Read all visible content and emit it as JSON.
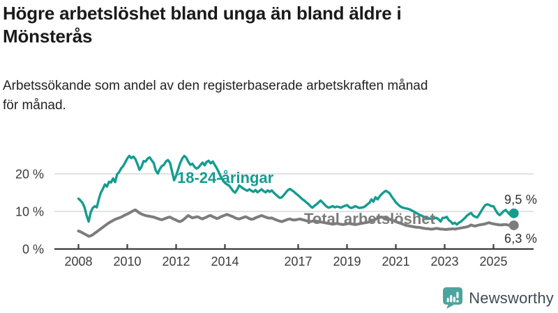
{
  "header": {
    "title_line1": "Högre arbetslöshet bland unga än bland äldre i",
    "title_line2": "Mönsterås",
    "subtitle_line1": "Arbetssökande som andel av den registerbaserade arbetskraften månad",
    "subtitle_line2": "för månad."
  },
  "chart_data": {
    "type": "line",
    "unit": "%",
    "x_start": "2008-01",
    "x_end": "2025-11",
    "x_cadence": "monthly",
    "x_ticks": [
      2008,
      2010,
      2012,
      2014,
      2017,
      2019,
      2021,
      2023,
      2025
    ],
    "y_ticks": [
      {
        "value": 0,
        "label": "0 %"
      },
      {
        "value": 10,
        "label": "10 %"
      },
      {
        "value": 20,
        "label": "20 %"
      }
    ],
    "ylim": [
      0,
      26
    ],
    "grid": "horizontal-only",
    "legend_position": "inline-labels",
    "series": [
      {
        "name": "18-24-åringar",
        "color": "#149c90",
        "end_label": "9,5 %",
        "end_value": 9.5,
        "values": [
          13.4,
          12.9,
          12.3,
          11.0,
          8.9,
          7.3,
          9.7,
          10.9,
          11.4,
          11.1,
          13.3,
          15.0,
          16.0,
          17.2,
          16.6,
          17.9,
          17.7,
          18.8,
          17.8,
          19.9,
          20.5,
          21.5,
          22.1,
          23.1,
          24.1,
          24.8,
          24.2,
          24.6,
          23.9,
          22.6,
          21.1,
          21.9,
          23.4,
          23.3,
          24.1,
          24.4,
          23.6,
          22.9,
          20.9,
          20.1,
          21.3,
          22.1,
          22.4,
          23.3,
          23.7,
          22.9,
          20.6,
          18.3,
          19.5,
          21.2,
          22.9,
          24.1,
          24.8,
          24.3,
          23.2,
          22.4,
          22.7,
          21.9,
          21.4,
          21.7,
          22.4,
          23.0,
          22.3,
          23.2,
          23.5,
          22.8,
          23.3,
          22.4,
          21.5,
          20.4,
          19.2,
          18.3,
          17.6,
          17.2,
          16.9,
          16.2,
          15.4,
          15.0,
          15.8,
          16.9,
          16.5,
          16.1,
          15.8,
          15.5,
          15.9,
          15.5,
          15.2,
          15.7,
          15.1,
          15.5,
          15.9,
          15.4,
          15.1,
          15.6,
          15.2,
          15.6,
          15.0,
          14.5,
          14.0,
          13.6,
          13.8,
          14.4,
          15.1,
          15.7,
          16.0,
          15.6,
          15.2,
          14.7,
          14.3,
          13.8,
          13.3,
          12.9,
          12.4,
          12.0,
          11.4,
          11.0,
          11.5,
          11.9,
          12.4,
          12.9,
          12.4,
          11.8,
          11.3,
          11.0,
          11.2,
          11.4,
          11.1,
          11.3,
          11.2,
          11.0,
          11.3,
          11.5,
          11.7,
          11.2,
          10.9,
          11.1,
          11.4,
          11.2,
          10.9,
          11.0,
          11.1,
          11.4,
          11.9,
          12.3,
          13.2,
          12.6,
          13.8,
          13.2,
          14.0,
          14.6,
          15.1,
          15.5,
          15.2,
          14.8,
          13.9,
          13.2,
          12.4,
          11.9,
          11.4,
          11.1,
          10.9,
          10.8,
          10.7,
          10.5,
          10.2,
          9.9,
          9.6,
          9.3,
          9.0,
          8.8,
          8.5,
          8.3,
          8.2,
          8.1,
          8.0,
          8.2,
          8.3,
          7.9,
          7.3,
          8.3,
          8.3,
          8.6,
          7.7,
          7.3,
          6.7,
          7.0,
          6.5,
          7.0,
          7.3,
          7.8,
          8.3,
          8.9,
          9.3,
          9.6,
          8.9,
          8.6,
          8.4,
          9.2,
          10.1,
          11.0,
          11.7,
          11.9,
          11.7,
          11.4,
          11.4,
          10.4,
          9.5,
          9.0,
          9.5,
          10.1,
          10.4,
          9.8,
          9.2,
          9.0,
          9.5
        ]
      },
      {
        "name": "Total arbetslöshet",
        "color": "#7c7c7c",
        "end_label": "6,3 %",
        "end_value": 6.3,
        "values": [
          4.8,
          4.6,
          4.3,
          4.0,
          3.7,
          3.4,
          3.5,
          3.8,
          4.2,
          4.6,
          5.0,
          5.4,
          5.8,
          6.2,
          6.6,
          7.0,
          7.3,
          7.6,
          7.9,
          8.1,
          8.3,
          8.5,
          8.8,
          9.1,
          9.3,
          9.6,
          9.9,
          10.2,
          10.4,
          10.0,
          9.6,
          9.3,
          9.1,
          8.9,
          8.8,
          8.7,
          8.6,
          8.5,
          8.3,
          8.1,
          7.9,
          7.8,
          8.0,
          8.2,
          8.4,
          8.5,
          8.2,
          7.9,
          7.7,
          7.4,
          7.3,
          7.6,
          8.0,
          8.5,
          8.9,
          8.6,
          8.3,
          8.4,
          8.6,
          8.5,
          8.2,
          8.0,
          8.3,
          8.5,
          8.8,
          8.9,
          8.6,
          8.4,
          8.1,
          8.3,
          8.6,
          8.8,
          9.0,
          9.2,
          9.0,
          8.8,
          8.6,
          8.3,
          8.1,
          8.0,
          8.2,
          8.4,
          8.6,
          8.4,
          8.1,
          7.9,
          8.0,
          8.3,
          8.5,
          8.7,
          8.9,
          8.7,
          8.5,
          8.3,
          8.2,
          8.3,
          8.0,
          7.8,
          7.6,
          7.4,
          7.3,
          7.5,
          7.7,
          7.9,
          8.0,
          7.8,
          7.7,
          7.8,
          7.9,
          8.0,
          7.8,
          7.7,
          7.5,
          7.4,
          7.3,
          7.4,
          7.5,
          7.4,
          7.3,
          7.2,
          7.1,
          7.0,
          6.9,
          6.8,
          6.7,
          6.6,
          6.7,
          6.8,
          6.7,
          6.6,
          6.5,
          6.6,
          6.7,
          6.8,
          6.7,
          6.6,
          6.5,
          6.6,
          6.7,
          6.8,
          6.9,
          7.0,
          7.1,
          7.2,
          7.4,
          7.6,
          7.9,
          8.2,
          8.4,
          8.5,
          8.4,
          8.3,
          8.1,
          7.9,
          7.7,
          7.5,
          7.3,
          7.1,
          6.9,
          6.7,
          6.5,
          6.3,
          6.2,
          6.1,
          6.0,
          5.9,
          5.8,
          5.8,
          5.7,
          5.6,
          5.5,
          5.4,
          5.4,
          5.3,
          5.3,
          5.4,
          5.5,
          5.4,
          5.3,
          5.3,
          5.2,
          5.2,
          5.3,
          5.3,
          5.4,
          5.3,
          5.4,
          5.5,
          5.6,
          5.7,
          5.8,
          5.9,
          6.1,
          6.4,
          6.2,
          6.1,
          6.3,
          6.4,
          6.5,
          6.6,
          6.7,
          6.9,
          7.0,
          6.8,
          6.7,
          6.6,
          6.5,
          6.4,
          6.4,
          6.5,
          6.5,
          6.4,
          6.3,
          6.3,
          6.3
        ]
      }
    ],
    "title": "Högre arbetslöshet bland unga än bland äldre i Mönsterås",
    "xlabel": "",
    "ylabel": ""
  },
  "style": {
    "grid_color": "#d8d8d8",
    "axis_color": "#3c3c3c",
    "tick_label_color": "#3c3c3c",
    "value_label_color": "#303030"
  },
  "branding": {
    "wordmark": "Newsworthy",
    "icon": "newsworthy-bubble-chart-icon",
    "icon_color": "#4ba59e",
    "text_color": "#3e4b58"
  }
}
